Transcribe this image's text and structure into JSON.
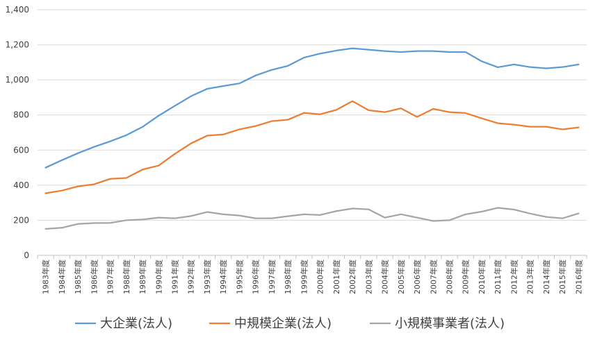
{
  "chart_data": {
    "type": "line",
    "title": "",
    "xlabel": "",
    "ylabel": "",
    "ylim": [
      0,
      1400
    ],
    "yticks": [
      0,
      200,
      400,
      600,
      800,
      1000,
      1200,
      1400
    ],
    "ytick_labels": [
      "0",
      "200",
      "400",
      "600",
      "800",
      "1,000",
      "1,200",
      "1,400"
    ],
    "grid": true,
    "legend_position": "bottom",
    "categories": [
      "1983年度",
      "1984年度",
      "1985年度",
      "1986年度",
      "1987年度",
      "1988年度",
      "1989年度",
      "1990年度",
      "1991年度",
      "1992年度",
      "1993年度",
      "1994年度",
      "1995年度",
      "1996年度",
      "1997年度",
      "1998年度",
      "1999年度",
      "2000年度",
      "2001年度",
      "2002年度",
      "2003年度",
      "2004年度",
      "2005年度",
      "2006年度",
      "2007年度",
      "2008年度",
      "2009年度",
      "2010年度",
      "2011年度",
      "2012年度",
      "2013年度",
      "2014年度",
      "2015年度",
      "2016年度"
    ],
    "series": [
      {
        "name": "大企業(法人)",
        "color": "#5B9BD5",
        "values": [
          500,
          542,
          582,
          618,
          650,
          685,
          732,
          796,
          852,
          907,
          949,
          965,
          980,
          1025,
          1057,
          1080,
          1127,
          1150,
          1167,
          1180,
          1172,
          1164,
          1159,
          1164,
          1164,
          1159,
          1159,
          1106,
          1072,
          1088,
          1073,
          1066,
          1073,
          1088
        ]
      },
      {
        "name": "中規模企業(法人)",
        "color": "#ED7D31",
        "values": [
          354,
          369,
          393,
          405,
          436,
          441,
          489,
          512,
          578,
          638,
          682,
          689,
          718,
          737,
          765,
          773,
          812,
          804,
          829,
          879,
          827,
          816,
          838,
          789,
          835,
          816,
          811,
          781,
          753,
          745,
          733,
          733,
          718,
          729
        ]
      },
      {
        "name": "小規模事業者(法人)",
        "color": "#A5A5A5",
        "values": [
          151,
          157,
          179,
          184,
          185,
          200,
          204,
          215,
          211,
          224,
          247,
          234,
          227,
          211,
          211,
          223,
          234,
          230,
          252,
          267,
          262,
          215,
          234,
          215,
          196,
          200,
          234,
          249,
          271,
          261,
          238,
          219,
          211,
          239
        ]
      }
    ]
  }
}
